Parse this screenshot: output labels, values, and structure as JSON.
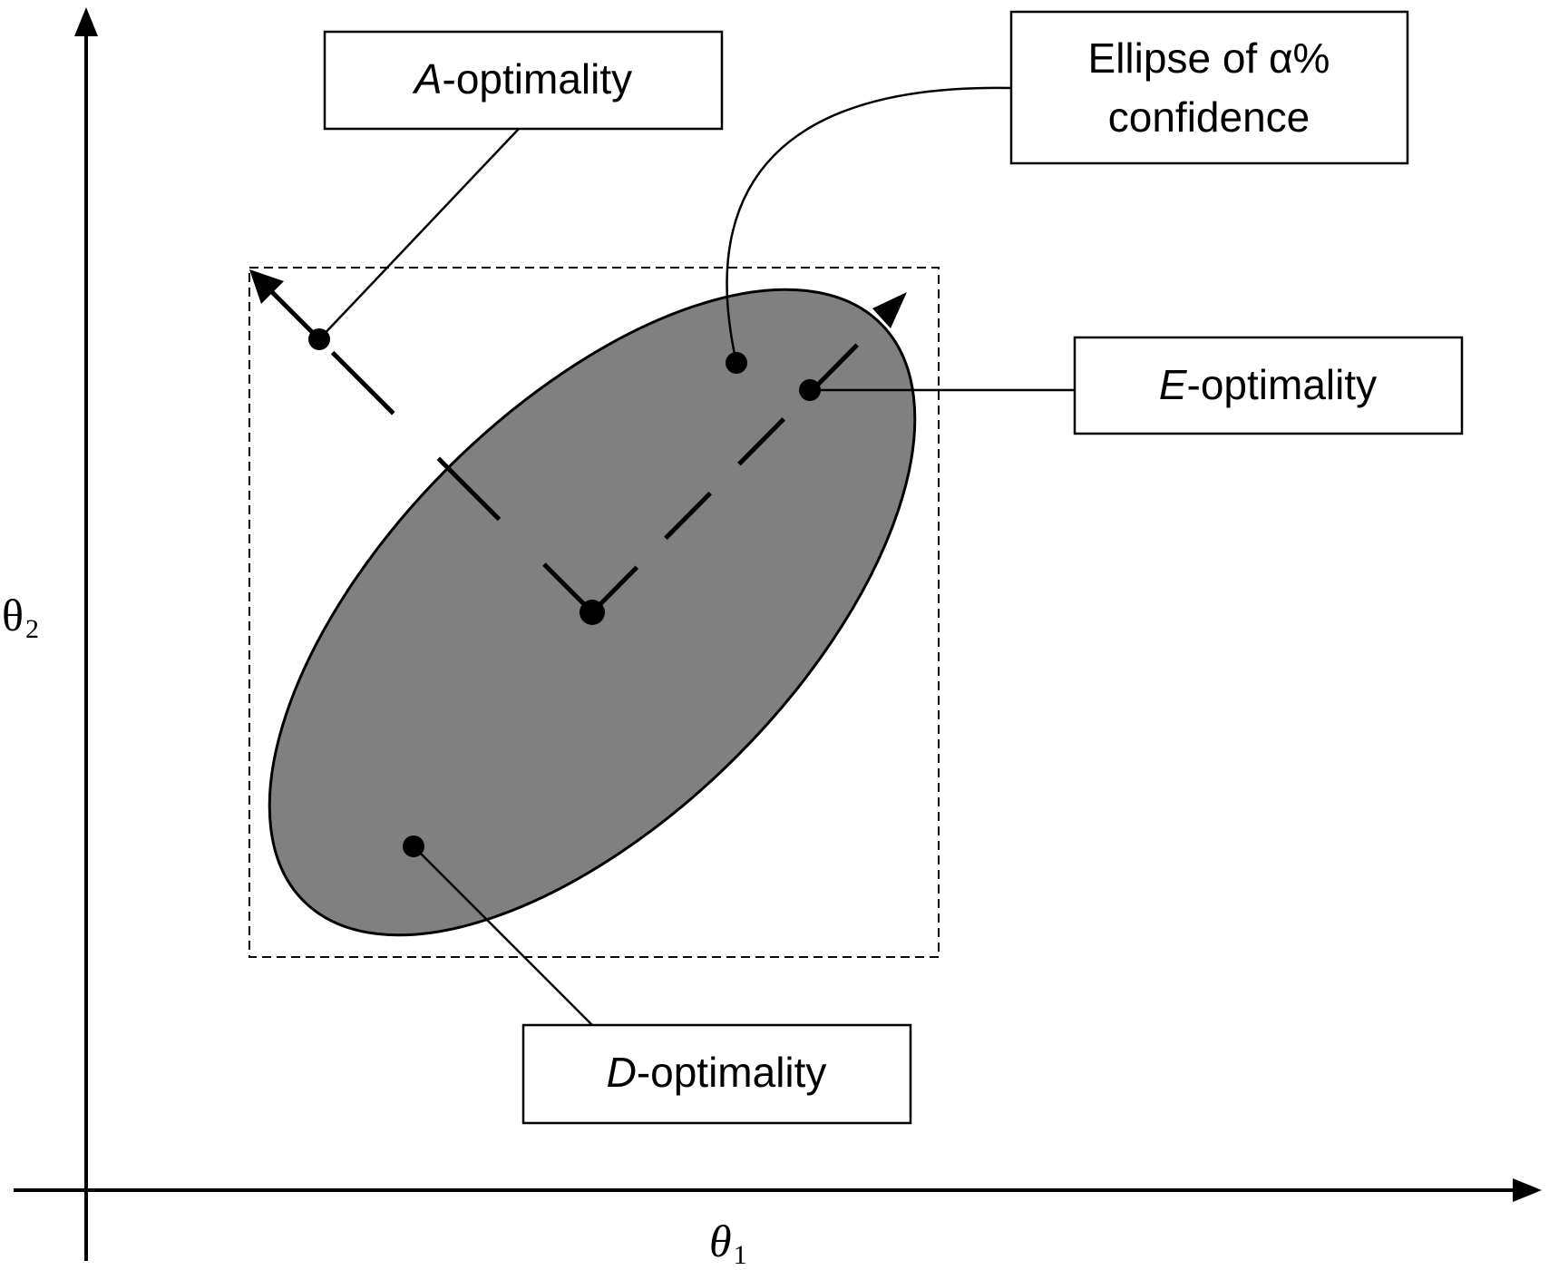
{
  "axes": {
    "x_symbol": "θ",
    "x_subscript": "1",
    "y_symbol": "θ",
    "y_subscript": "2"
  },
  "labels": {
    "a_optimality": {
      "letter": "A",
      "suffix": "-optimality"
    },
    "e_optimality": {
      "letter": "E",
      "suffix": "-optimality"
    },
    "d_optimality": {
      "letter": "D",
      "suffix": "-optimality"
    },
    "ellipse": {
      "line1": "Ellipse of α%",
      "line2": "confidence"
    }
  },
  "colors": {
    "ellipse_fill": "#808080",
    "stroke": "#000000",
    "background": "#ffffff"
  }
}
